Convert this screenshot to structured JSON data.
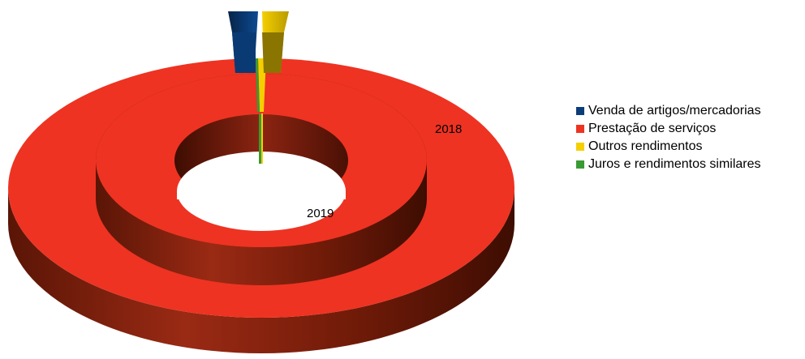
{
  "chart_data": {
    "type": "doughnut-3d",
    "rings": [
      {
        "label": "2019",
        "values": [
          0.5,
          99.0,
          0.4,
          0.1
        ]
      },
      {
        "label": "2018",
        "values": [
          0.5,
          99.0,
          0.4,
          0.1
        ]
      }
    ],
    "series": [
      {
        "name": "Venda de artigos/mercadorias",
        "color": "#0b3d79"
      },
      {
        "name": "Prestação de serviços",
        "color": "#ee3322"
      },
      {
        "name": "Outros rendimentos",
        "color": "#f5cf00"
      },
      {
        "name": "Juros e rendimentos similares",
        "color": "#3a9a34"
      }
    ],
    "legend_position": "right"
  }
}
